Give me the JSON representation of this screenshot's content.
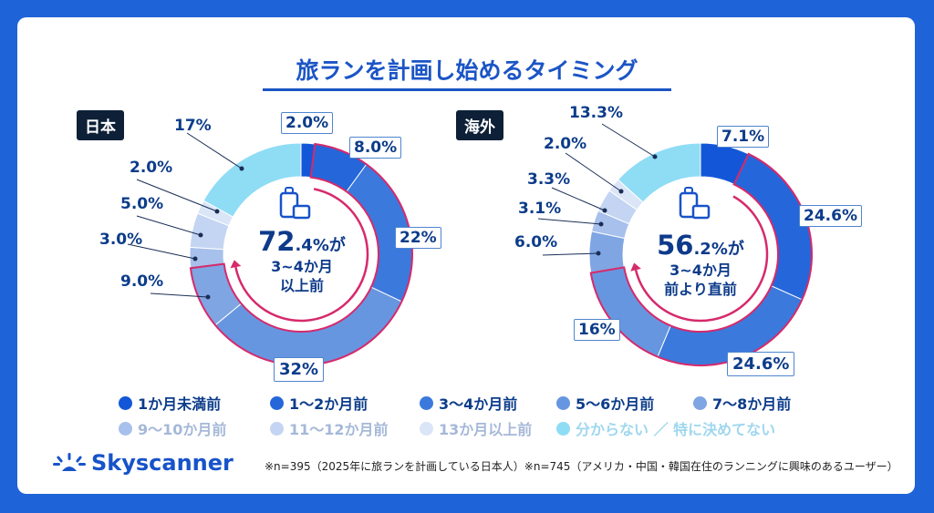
{
  "title": "旅ランを計画し始めるタイミング",
  "chart_data": [
    {
      "type": "pie",
      "region_label": "日本",
      "categories": [
        "1か月未満前",
        "1〜2か月前",
        "3〜4か月前",
        "5〜6か月前",
        "7〜8か月前",
        "9〜10か月前",
        "11〜12か月前",
        "13か月以上前",
        "分からない ／ 特に決めてない"
      ],
      "values": [
        2.0,
        8.0,
        22,
        32,
        9.0,
        3.0,
        5.0,
        2.0,
        17
      ],
      "value_labels": [
        "2.0%",
        "8.0%",
        "22%",
        "32%",
        "9.0%",
        "3.0%",
        "5.0%",
        "2.0%",
        "17%"
      ],
      "center": {
        "value": "72",
        "decimal": ".4%が",
        "line1": "3~4か月",
        "line2": "以上前"
      }
    },
    {
      "type": "pie",
      "region_label": "海外",
      "categories": [
        "1か月未満前",
        "1〜2か月前",
        "3〜4か月前",
        "5〜6か月前",
        "7〜8か月前",
        "9〜10か月前",
        "11〜12か月前",
        "13か月以上前",
        "分からない ／ 特に決めてない"
      ],
      "values": [
        7.1,
        24.6,
        24.6,
        16,
        6.0,
        3.1,
        3.3,
        2.0,
        13.3
      ],
      "value_labels": [
        "7.1%",
        "24.6%",
        "24.6%",
        "16%",
        "6.0%",
        "3.1%",
        "3.3%",
        "2.0%",
        "13.3%"
      ],
      "center": {
        "value": "56",
        "decimal": ".2%が",
        "line1": "3~4か月",
        "line2": "前より直前"
      }
    }
  ],
  "colors": [
    "#1357d8",
    "#2567da",
    "#3c79dc",
    "#6796e0",
    "#7fa5e3",
    "#a7c0ec",
    "#c3d5f2",
    "#dae5f7",
    "#8fdcf5"
  ],
  "highlight_color": "#d62a6b",
  "legend": [
    "1か月未満前",
    "1〜2か月前",
    "3〜4か月前",
    "5〜6か月前",
    "7〜8か月前",
    "9〜10か月前",
    "11〜12か月前",
    "13か月以上前",
    "分からない ／ 特に決めてない"
  ],
  "brand": "Skyscanner",
  "footnote": "※n=395（2025年に旅ランを計画している日本人）※n=745（アメリカ・中国・韓国在住のランニングに興味のあるユーザー）"
}
